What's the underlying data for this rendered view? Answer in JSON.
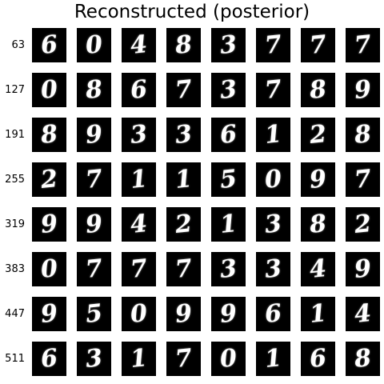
{
  "figure": {
    "title": "Reconstructed (posterior)",
    "colors": {
      "background": "#ffffff",
      "tile": "#000000",
      "digit": "#ffffff"
    },
    "rows": [
      {
        "label": "63",
        "digits": [
          "6",
          "0",
          "4",
          "8",
          "3",
          "7",
          "7",
          "7"
        ]
      },
      {
        "label": "127",
        "digits": [
          "0",
          "8",
          "6",
          "7",
          "3",
          "7",
          "8",
          "9"
        ]
      },
      {
        "label": "191",
        "digits": [
          "8",
          "9",
          "3",
          "3",
          "6",
          "1",
          "2",
          "8"
        ]
      },
      {
        "label": "255",
        "digits": [
          "2",
          "7",
          "1",
          "1",
          "5",
          "0",
          "9",
          "7"
        ]
      },
      {
        "label": "319",
        "digits": [
          "9",
          "9",
          "4",
          "2",
          "1",
          "3",
          "8",
          "2"
        ]
      },
      {
        "label": "383",
        "digits": [
          "0",
          "7",
          "7",
          "7",
          "3",
          "3",
          "4",
          "9"
        ]
      },
      {
        "label": "447",
        "digits": [
          "9",
          "5",
          "0",
          "9",
          "9",
          "6",
          "1",
          "4"
        ]
      },
      {
        "label": "511",
        "digits": [
          "6",
          "3",
          "1",
          "7",
          "0",
          "1",
          "6",
          "8"
        ]
      }
    ]
  }
}
